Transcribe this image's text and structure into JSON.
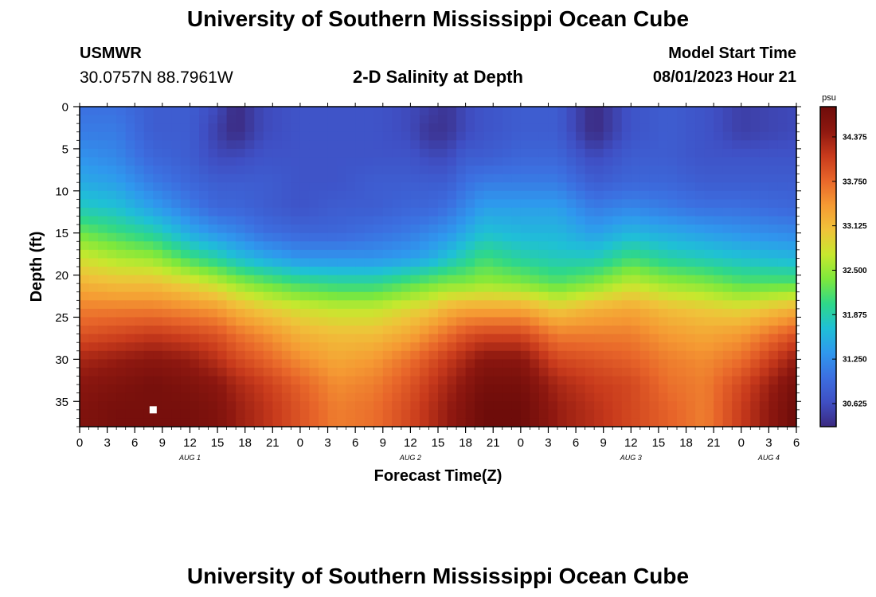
{
  "header": {
    "title": "University of Southern Mississippi Ocean Cube",
    "station": "USMWR",
    "coords": "30.0757N  88.7961W",
    "subtitle": "2-D Salinity at Depth",
    "model_start_label": "Model Start Time",
    "model_start_value": "08/01/2023 Hour 21"
  },
  "footer": {
    "title": "University of Southern Mississippi Ocean Cube"
  },
  "colors": {
    "scale": [
      "#3b2a80",
      "#3f4fc4",
      "#3c6fe0",
      "#2f98ee",
      "#1fc0d6",
      "#2fd888",
      "#7ee83c",
      "#c7e82e",
      "#f0c23a",
      "#f59a33",
      "#e8662a",
      "#c83a1c",
      "#8e1810",
      "#6e0c0a"
    ]
  },
  "chart_data": {
    "type": "heatmap",
    "title": "2-D Salinity at Depth",
    "xlabel": "Forecast Time(Z)",
    "ylabel": "Depth (ft)",
    "xlim": [
      0,
      78
    ],
    "ylim": [
      38,
      0
    ],
    "x_ticks": [
      {
        "x": 0,
        "label": "0"
      },
      {
        "x": 3,
        "label": "3"
      },
      {
        "x": 6,
        "label": "6"
      },
      {
        "x": 9,
        "label": "9"
      },
      {
        "x": 12,
        "label": "12"
      },
      {
        "x": 15,
        "label": "15"
      },
      {
        "x": 18,
        "label": "18"
      },
      {
        "x": 21,
        "label": "21"
      },
      {
        "x": 24,
        "label": "0"
      },
      {
        "x": 27,
        "label": "3"
      },
      {
        "x": 30,
        "label": "6"
      },
      {
        "x": 33,
        "label": "9"
      },
      {
        "x": 36,
        "label": "12"
      },
      {
        "x": 39,
        "label": "15"
      },
      {
        "x": 42,
        "label": "18"
      },
      {
        "x": 45,
        "label": "21"
      },
      {
        "x": 48,
        "label": "0"
      },
      {
        "x": 51,
        "label": "3"
      },
      {
        "x": 54,
        "label": "6"
      },
      {
        "x": 57,
        "label": "9"
      },
      {
        "x": 60,
        "label": "12"
      },
      {
        "x": 63,
        "label": "15"
      },
      {
        "x": 66,
        "label": "18"
      },
      {
        "x": 69,
        "label": "21"
      },
      {
        "x": 72,
        "label": "0"
      },
      {
        "x": 75,
        "label": "3"
      },
      {
        "x": 78,
        "label": "6"
      }
    ],
    "date_labels": [
      {
        "x": 12,
        "label": "AUG 1"
      },
      {
        "x": 36,
        "label": "AUG 2"
      },
      {
        "x": 60,
        "label": "AUG 3"
      },
      {
        "x": 75,
        "label": "AUG 4"
      }
    ],
    "y_ticks": [
      0,
      5,
      10,
      15,
      20,
      25,
      30,
      35
    ],
    "colorbar": {
      "unit": "psu",
      "min": 30.3,
      "max": 34.8,
      "ticks": [
        "34.375",
        "33.750",
        "33.125",
        "32.500",
        "31.875",
        "31.250",
        "30.625"
      ]
    },
    "marker": {
      "x": 8,
      "depth": 36
    },
    "anchor_time": [
      0,
      4,
      8,
      12,
      15,
      17,
      20,
      24,
      28,
      32,
      36,
      38,
      40,
      42,
      44,
      48,
      52,
      56,
      60,
      64,
      68,
      72,
      78
    ],
    "anchor_depth": [
      0,
      3,
      6,
      9,
      12,
      15,
      18,
      21,
      24,
      27,
      30,
      33,
      36,
      38
    ],
    "salinity": [
      [
        31.0,
        31.1,
        31.3,
        31.5,
        31.8,
        32.3,
        32.8,
        33.2,
        33.6,
        33.9,
        34.3,
        34.5,
        34.6,
        34.6
      ],
      [
        31.0,
        31.1,
        31.2,
        31.4,
        31.7,
        32.1,
        32.6,
        33.1,
        33.6,
        34.0,
        34.4,
        34.6,
        34.7,
        34.7
      ],
      [
        30.8,
        30.8,
        30.9,
        31.1,
        31.4,
        31.9,
        32.5,
        33.1,
        33.6,
        34.1,
        34.5,
        34.7,
        34.7,
        34.7
      ],
      [
        30.8,
        30.8,
        30.8,
        30.9,
        31.1,
        31.5,
        32.1,
        32.9,
        33.5,
        34.0,
        34.4,
        34.6,
        34.7,
        34.7
      ],
      [
        30.6,
        30.5,
        30.6,
        30.8,
        30.9,
        31.3,
        31.9,
        32.7,
        33.4,
        33.9,
        34.2,
        34.5,
        34.6,
        34.6
      ],
      [
        30.3,
        30.3,
        30.6,
        30.8,
        30.9,
        31.2,
        31.7,
        32.5,
        33.2,
        33.7,
        34.0,
        34.3,
        34.4,
        34.4
      ],
      [
        30.6,
        30.6,
        30.7,
        30.8,
        30.8,
        31.0,
        31.5,
        32.3,
        33.0,
        33.5,
        33.8,
        34.1,
        34.2,
        34.2
      ],
      [
        30.7,
        30.7,
        30.7,
        30.7,
        30.7,
        30.9,
        31.3,
        32.1,
        32.8,
        33.2,
        33.5,
        33.8,
        33.9,
        33.9
      ],
      [
        30.7,
        30.7,
        30.7,
        30.7,
        30.8,
        30.9,
        31.3,
        32.0,
        32.7,
        33.1,
        33.3,
        33.5,
        33.6,
        33.6
      ],
      [
        30.7,
        30.7,
        30.7,
        30.8,
        30.8,
        31.0,
        31.3,
        32.0,
        32.7,
        33.1,
        33.4,
        33.6,
        33.7,
        33.7
      ],
      [
        30.6,
        30.6,
        30.7,
        30.8,
        30.9,
        31.1,
        31.4,
        32.2,
        32.9,
        33.3,
        33.7,
        33.9,
        34.0,
        34.0
      ],
      [
        30.5,
        30.4,
        30.6,
        30.8,
        30.9,
        31.2,
        31.5,
        32.3,
        33.0,
        33.5,
        33.9,
        34.1,
        34.2,
        34.2
      ],
      [
        30.4,
        30.4,
        30.6,
        30.8,
        31.0,
        31.3,
        31.7,
        32.4,
        33.2,
        33.7,
        34.1,
        34.3,
        34.4,
        34.4
      ],
      [
        30.6,
        30.6,
        30.8,
        31.0,
        31.2,
        31.5,
        31.9,
        32.4,
        33.3,
        33.9,
        34.3,
        34.5,
        34.6,
        34.6
      ],
      [
        30.7,
        30.7,
        30.8,
        31.1,
        31.4,
        31.7,
        32.1,
        32.5,
        33.3,
        34.0,
        34.5,
        34.7,
        34.8,
        34.8
      ],
      [
        30.8,
        30.8,
        30.9,
        31.1,
        31.4,
        31.6,
        31.9,
        32.4,
        33.3,
        34.0,
        34.5,
        34.7,
        34.8,
        34.8
      ],
      [
        30.8,
        30.8,
        30.9,
        31.1,
        31.4,
        31.6,
        31.8,
        32.2,
        33.0,
        33.6,
        34.0,
        34.3,
        34.4,
        34.4
      ],
      [
        30.3,
        30.3,
        30.6,
        30.8,
        31.1,
        31.4,
        31.8,
        32.4,
        33.2,
        33.6,
        33.9,
        34.1,
        34.2,
        34.2
      ],
      [
        30.7,
        30.7,
        30.8,
        30.9,
        31.2,
        31.6,
        32.1,
        32.7,
        33.3,
        33.6,
        33.8,
        34.0,
        34.0,
        34.0
      ],
      [
        30.8,
        30.8,
        30.8,
        30.9,
        31.1,
        31.5,
        31.9,
        32.5,
        33.1,
        33.4,
        33.6,
        33.7,
        33.8,
        33.8
      ],
      [
        30.7,
        30.7,
        30.7,
        30.8,
        31.0,
        31.4,
        31.8,
        32.4,
        33.0,
        33.3,
        33.5,
        33.6,
        33.6,
        33.6
      ],
      [
        30.5,
        30.5,
        30.7,
        30.8,
        31.0,
        31.3,
        31.7,
        32.2,
        32.9,
        33.4,
        33.7,
        34.0,
        34.1,
        34.1
      ],
      [
        30.6,
        30.6,
        30.7,
        30.8,
        30.9,
        31.2,
        31.6,
        32.2,
        33.2,
        33.9,
        34.4,
        34.7,
        34.8,
        34.8
      ]
    ]
  }
}
